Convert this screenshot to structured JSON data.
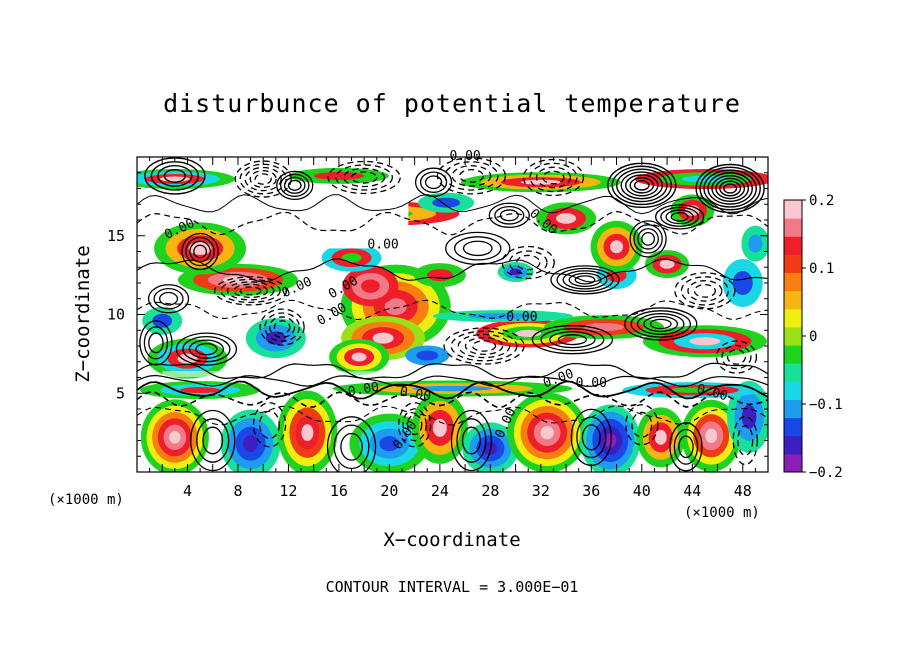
{
  "chart_data": {
    "type": "heatmap",
    "title": "disturbunce of potential temperature",
    "xlabel": "X−coordinate",
    "ylabel": "Z−coordinate",
    "x_unit": "(×1000 m)",
    "x_unit_right": "(×1000 m)",
    "xlim": [
      0,
      50
    ],
    "ylim": [
      0,
      20
    ],
    "x_ticks": [
      "4",
      "8",
      "12",
      "16",
      "20",
      "24",
      "28",
      "32",
      "36",
      "40",
      "44",
      "48"
    ],
    "y_ticks": [
      "5",
      "10",
      "15"
    ],
    "colorbar": {
      "ticks": [
        "0.2",
        "0.1",
        "0",
        "−0.1",
        "−0.2"
      ],
      "range": [
        -0.2,
        0.2
      ],
      "colors": [
        "#8b1fb8",
        "#3c1fc0",
        "#1a48e8",
        "#1e9cf0",
        "#19d8e6",
        "#18e09b",
        "#1ed21e",
        "#9ae014",
        "#f0ee10",
        "#f8b410",
        "#f87e10",
        "#f03c14",
        "#ee1e2a",
        "#f27a88",
        "#fbc7cf"
      ]
    },
    "contour_label": "0.00",
    "footer": "CONTOUR INTERVAL = 3.000E−01"
  }
}
